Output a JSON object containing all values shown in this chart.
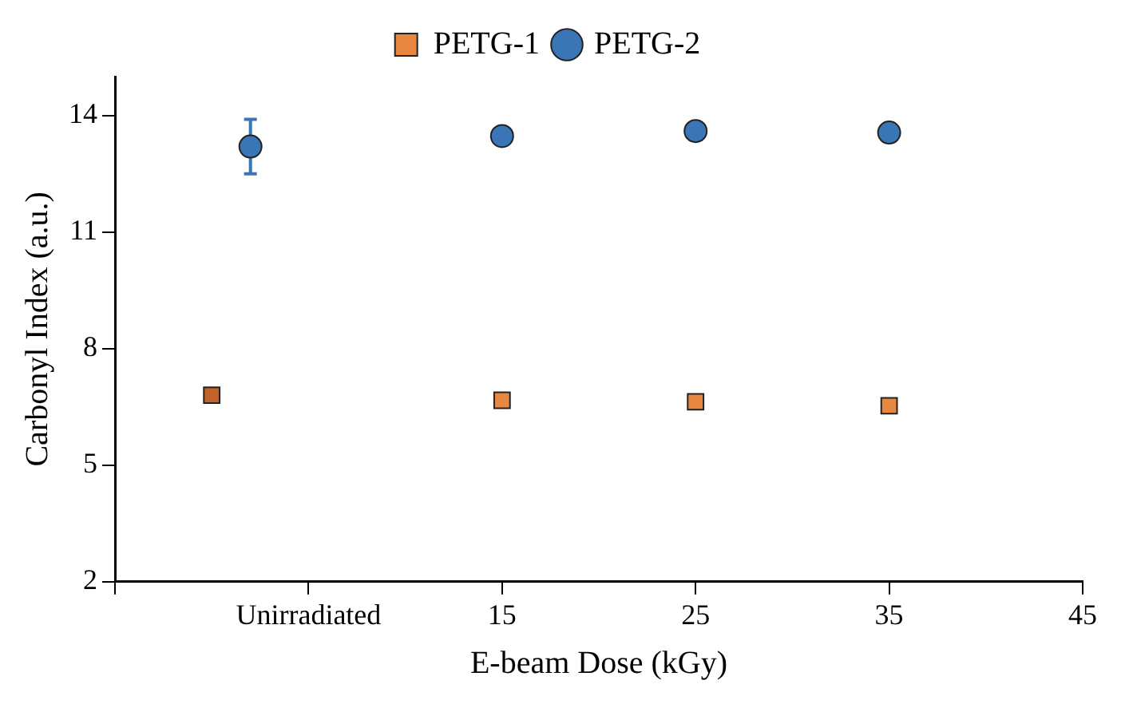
{
  "chart_data": {
    "type": "scatter",
    "xlabel": "E-beam Dose (kGy)",
    "ylabel": "Carbonyl Index (a.u.)",
    "legend": "top",
    "grid": false,
    "xlim": [
      -5,
      45
    ],
    "xticks": [
      {
        "value": -5,
        "label": null
      },
      {
        "value": 5,
        "label": "Unirradiated"
      },
      15,
      25,
      35,
      45
    ],
    "ylim": [
      2,
      15
    ],
    "yticks": [
      2,
      5,
      8,
      11,
      14
    ],
    "series": [
      {
        "name": "PETG-1",
        "marker": "square",
        "color": "#e8873f",
        "colors": [
          "#c0622a",
          "#e8873f",
          "#e8873f",
          "#e8873f"
        ],
        "x": [
          0,
          15,
          25,
          35
        ],
        "values": [
          6.8,
          6.67,
          6.63,
          6.53
        ]
      },
      {
        "name": "PETG-2",
        "marker": "circle",
        "color": "#3a75b5",
        "x": [
          2,
          15,
          25,
          35
        ],
        "values": [
          13.2,
          13.47,
          13.6,
          13.56
        ],
        "errors": [
          0.7,
          null,
          null,
          null
        ]
      }
    ]
  }
}
